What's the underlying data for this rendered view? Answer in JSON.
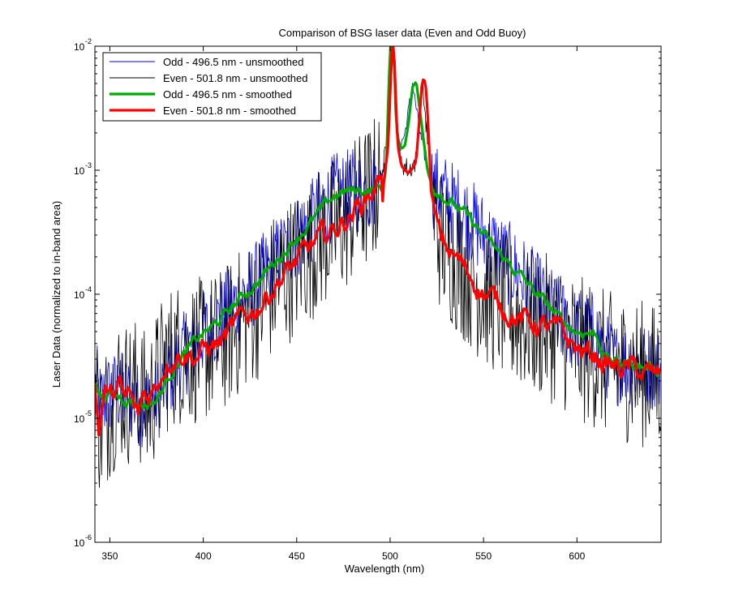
{
  "chart_data": {
    "type": "line",
    "title": "Comparison of BSG laser data (Even and Odd Buoy)",
    "xlabel": "Wavelength (nm)",
    "ylabel": "Laser Data (normalized to in-band area)",
    "xlim": [
      342,
      645
    ],
    "ylim_exponent": [
      -6,
      -2
    ],
    "yscale": "log",
    "x_ticks": [
      350,
      400,
      450,
      500,
      550,
      600
    ],
    "x_tick_labels": [
      "350",
      "400",
      "450",
      "500",
      "550",
      "600"
    ],
    "y_tick_exponents": [
      -6,
      -5,
      -4,
      -3,
      -2
    ],
    "y_tick_base": "10",
    "y_tick_labels": [
      "-6",
      "-5",
      "-4",
      "-3",
      "-2"
    ],
    "grid": false,
    "legend_position": "top-left",
    "series": [
      {
        "name": "Odd - 496.5 nm - unsmoothed",
        "color": "#0000ff",
        "style": "thin",
        "noise_amplitude": 0.35,
        "x": [
          342,
          345,
          350,
          355,
          360,
          365,
          370,
          375,
          380,
          385,
          390,
          395,
          400,
          405,
          410,
          420,
          430,
          440,
          450,
          460,
          470,
          480,
          490,
          495,
          498,
          500,
          501.5,
          503,
          505,
          508,
          512,
          516,
          520,
          523,
          526,
          530,
          540,
          550,
          560,
          570,
          580,
          585,
          590,
          600,
          605,
          610,
          615,
          620,
          625,
          630,
          635,
          640,
          645
        ],
        "y": [
          2.1e-05,
          1.3e-05,
          1.6e-05,
          1.6e-05,
          1.5e-05,
          1.3e-05,
          1.3e-05,
          1.4e-05,
          1.9e-05,
          2.7e-05,
          3.3e-05,
          4e-05,
          4.8e-05,
          5.4e-05,
          6.4e-05,
          9.3e-05,
          0.00013,
          0.000195,
          0.00029,
          0.00041,
          0.00062,
          0.00068,
          0.0007,
          0.0009,
          0.0012,
          0.003,
          0.0095,
          0.003,
          0.0015,
          0.002,
          0.005,
          0.002,
          0.001,
          0.00075,
          0.00069,
          0.0006,
          0.00044,
          0.0003,
          0.0002,
          0.00014,
          9.4e-05,
          8e-05,
          6.4e-05,
          5e-05,
          5e-05,
          4.8e-05,
          3.2e-05,
          2.8e-05,
          2.8e-05,
          2.8e-05,
          2.6e-05,
          2.6e-05,
          2.4e-05
        ]
      },
      {
        "name": "Even - 501.8 nm - unsmoothed",
        "color": "#000000",
        "style": "thin",
        "noise_amplitude": 0.6,
        "x": [
          342,
          345,
          350,
          355,
          360,
          365,
          370,
          375,
          380,
          385,
          390,
          400,
          410,
          420,
          430,
          440,
          450,
          460,
          470,
          480,
          490,
          494,
          496,
          498,
          500,
          501.5,
          503,
          505,
          510,
          514,
          517,
          520,
          524,
          527,
          530,
          540,
          550,
          560,
          570,
          580,
          590,
          600,
          610,
          615,
          620,
          625,
          630,
          635,
          640,
          645
        ],
        "y": [
          2e-05,
          8e-06,
          1.3e-05,
          1.8e-05,
          1.6e-05,
          1.7e-05,
          1.2e-05,
          1.9e-05,
          2.9e-05,
          3.3e-05,
          3.5e-05,
          3.5e-05,
          4.2e-05,
          6e-05,
          8.2e-05,
          0.00013,
          0.00018,
          0.00026,
          0.00033,
          0.00046,
          0.00066,
          0.0008,
          0.001,
          0.0015,
          0.004,
          0.0095,
          0.004,
          0.0012,
          0.001,
          0.0012,
          0.0055,
          0.0018,
          0.0004,
          0.00028,
          0.00024,
          0.00016,
          0.000105,
          8e-05,
          6.3e-05,
          5.6e-05,
          5e-05,
          3.6e-05,
          3.2e-05,
          2.8e-05,
          2.6e-05,
          2.5e-05,
          2.5e-05,
          2.3e-05,
          2.2e-05,
          2.2e-05
        ]
      },
      {
        "name": "Odd - 496.5 nm - smoothed",
        "color": "#00aa00",
        "style": "thick",
        "noise_amplitude": 0.06,
        "x": [
          342,
          345,
          350,
          355,
          360,
          365,
          370,
          375,
          378,
          380,
          385,
          390,
          395,
          400,
          405,
          410,
          420,
          430,
          440,
          450,
          460,
          470,
          475,
          480,
          485,
          490,
          495,
          497,
          498,
          499,
          500,
          501,
          501.5,
          502,
          503,
          504,
          506,
          508,
          510,
          512,
          514,
          516,
          518,
          520,
          522,
          524,
          526,
          530,
          540,
          550,
          560,
          570,
          580,
          585,
          590,
          600,
          605,
          610,
          615,
          620,
          625,
          630,
          635,
          640,
          645
        ],
        "y": [
          1.9e-05,
          1.5e-05,
          1.55e-05,
          1.5e-05,
          1.45e-05,
          1.3e-05,
          1.3e-05,
          1.4e-05,
          1.7e-05,
          2e-05,
          2.7e-05,
          3.3e-05,
          4e-05,
          4.8e-05,
          5.4e-05,
          6.4e-05,
          9.3e-05,
          0.00013,
          0.000195,
          0.00029,
          0.00041,
          0.00062,
          0.00066,
          0.00068,
          0.00069,
          0.0007,
          0.00071,
          0.0008,
          0.0012,
          0.0035,
          0.0098,
          0.0098,
          0.0098,
          0.0095,
          0.003,
          0.0018,
          0.0015,
          0.0016,
          0.0025,
          0.0048,
          0.0052,
          0.003,
          0.0017,
          0.001,
          0.0008,
          0.00072,
          0.00069,
          0.0006,
          0.00044,
          0.0003,
          0.0002,
          0.00014,
          9.4e-05,
          8e-05,
          6.4e-05,
          5e-05,
          5e-05,
          4.8e-05,
          3.2e-05,
          2.8e-05,
          2.8e-05,
          2.8e-05,
          2.6e-05,
          2.6e-05,
          2.4e-05
        ]
      },
      {
        "name": "Even - 501.8 nm - smoothed",
        "color": "#ff0000",
        "style": "thick",
        "noise_amplitude": 0.12,
        "x": [
          342,
          344,
          346,
          348,
          350,
          352,
          355,
          358,
          360,
          362,
          365,
          368,
          370,
          372,
          375,
          378,
          380,
          385,
          390,
          395,
          400,
          410,
          420,
          430,
          440,
          450,
          460,
          470,
          480,
          485,
          490,
          492,
          494,
          495,
          496,
          498,
          499,
          500,
          501,
          502,
          503,
          504,
          506,
          508,
          510,
          512,
          514,
          516,
          517,
          518,
          519,
          520,
          521,
          522,
          524,
          527,
          530,
          540,
          550,
          560,
          570,
          580,
          590,
          600,
          610,
          615,
          620,
          625,
          630,
          635,
          640,
          645
        ],
        "y": [
          1.9e-05,
          8e-06,
          1.3e-05,
          1.7e-05,
          1.4e-05,
          1.6e-05,
          1.8e-05,
          1.3e-05,
          1.6e-05,
          1.3e-05,
          1e-05,
          1.6e-05,
          1.5e-05,
          1.6e-05,
          1.9e-05,
          2.4e-05,
          2.9e-05,
          3.3e-05,
          3.5e-05,
          3.2e-05,
          3.5e-05,
          4.2e-05,
          6e-05,
          8.2e-05,
          0.00013,
          0.00018,
          0.00026,
          0.00033,
          0.00046,
          0.00056,
          0.00066,
          0.00075,
          0.0008,
          0.001,
          0.0007,
          0.0012,
          0.0016,
          0.004,
          0.0098,
          0.0098,
          0.004,
          0.0016,
          0.00105,
          0.00098,
          0.00095,
          0.001,
          0.0012,
          0.003,
          0.0048,
          0.0055,
          0.005,
          0.003,
          0.0014,
          0.00065,
          0.0004,
          0.00028,
          0.00024,
          0.00016,
          0.000105,
          8e-05,
          6.3e-05,
          5.6e-05,
          5e-05,
          3.6e-05,
          3.2e-05,
          2.8e-05,
          2.6e-05,
          2.5e-05,
          2.5e-05,
          2.3e-05,
          2.2e-05,
          2.2e-05
        ]
      }
    ]
  }
}
